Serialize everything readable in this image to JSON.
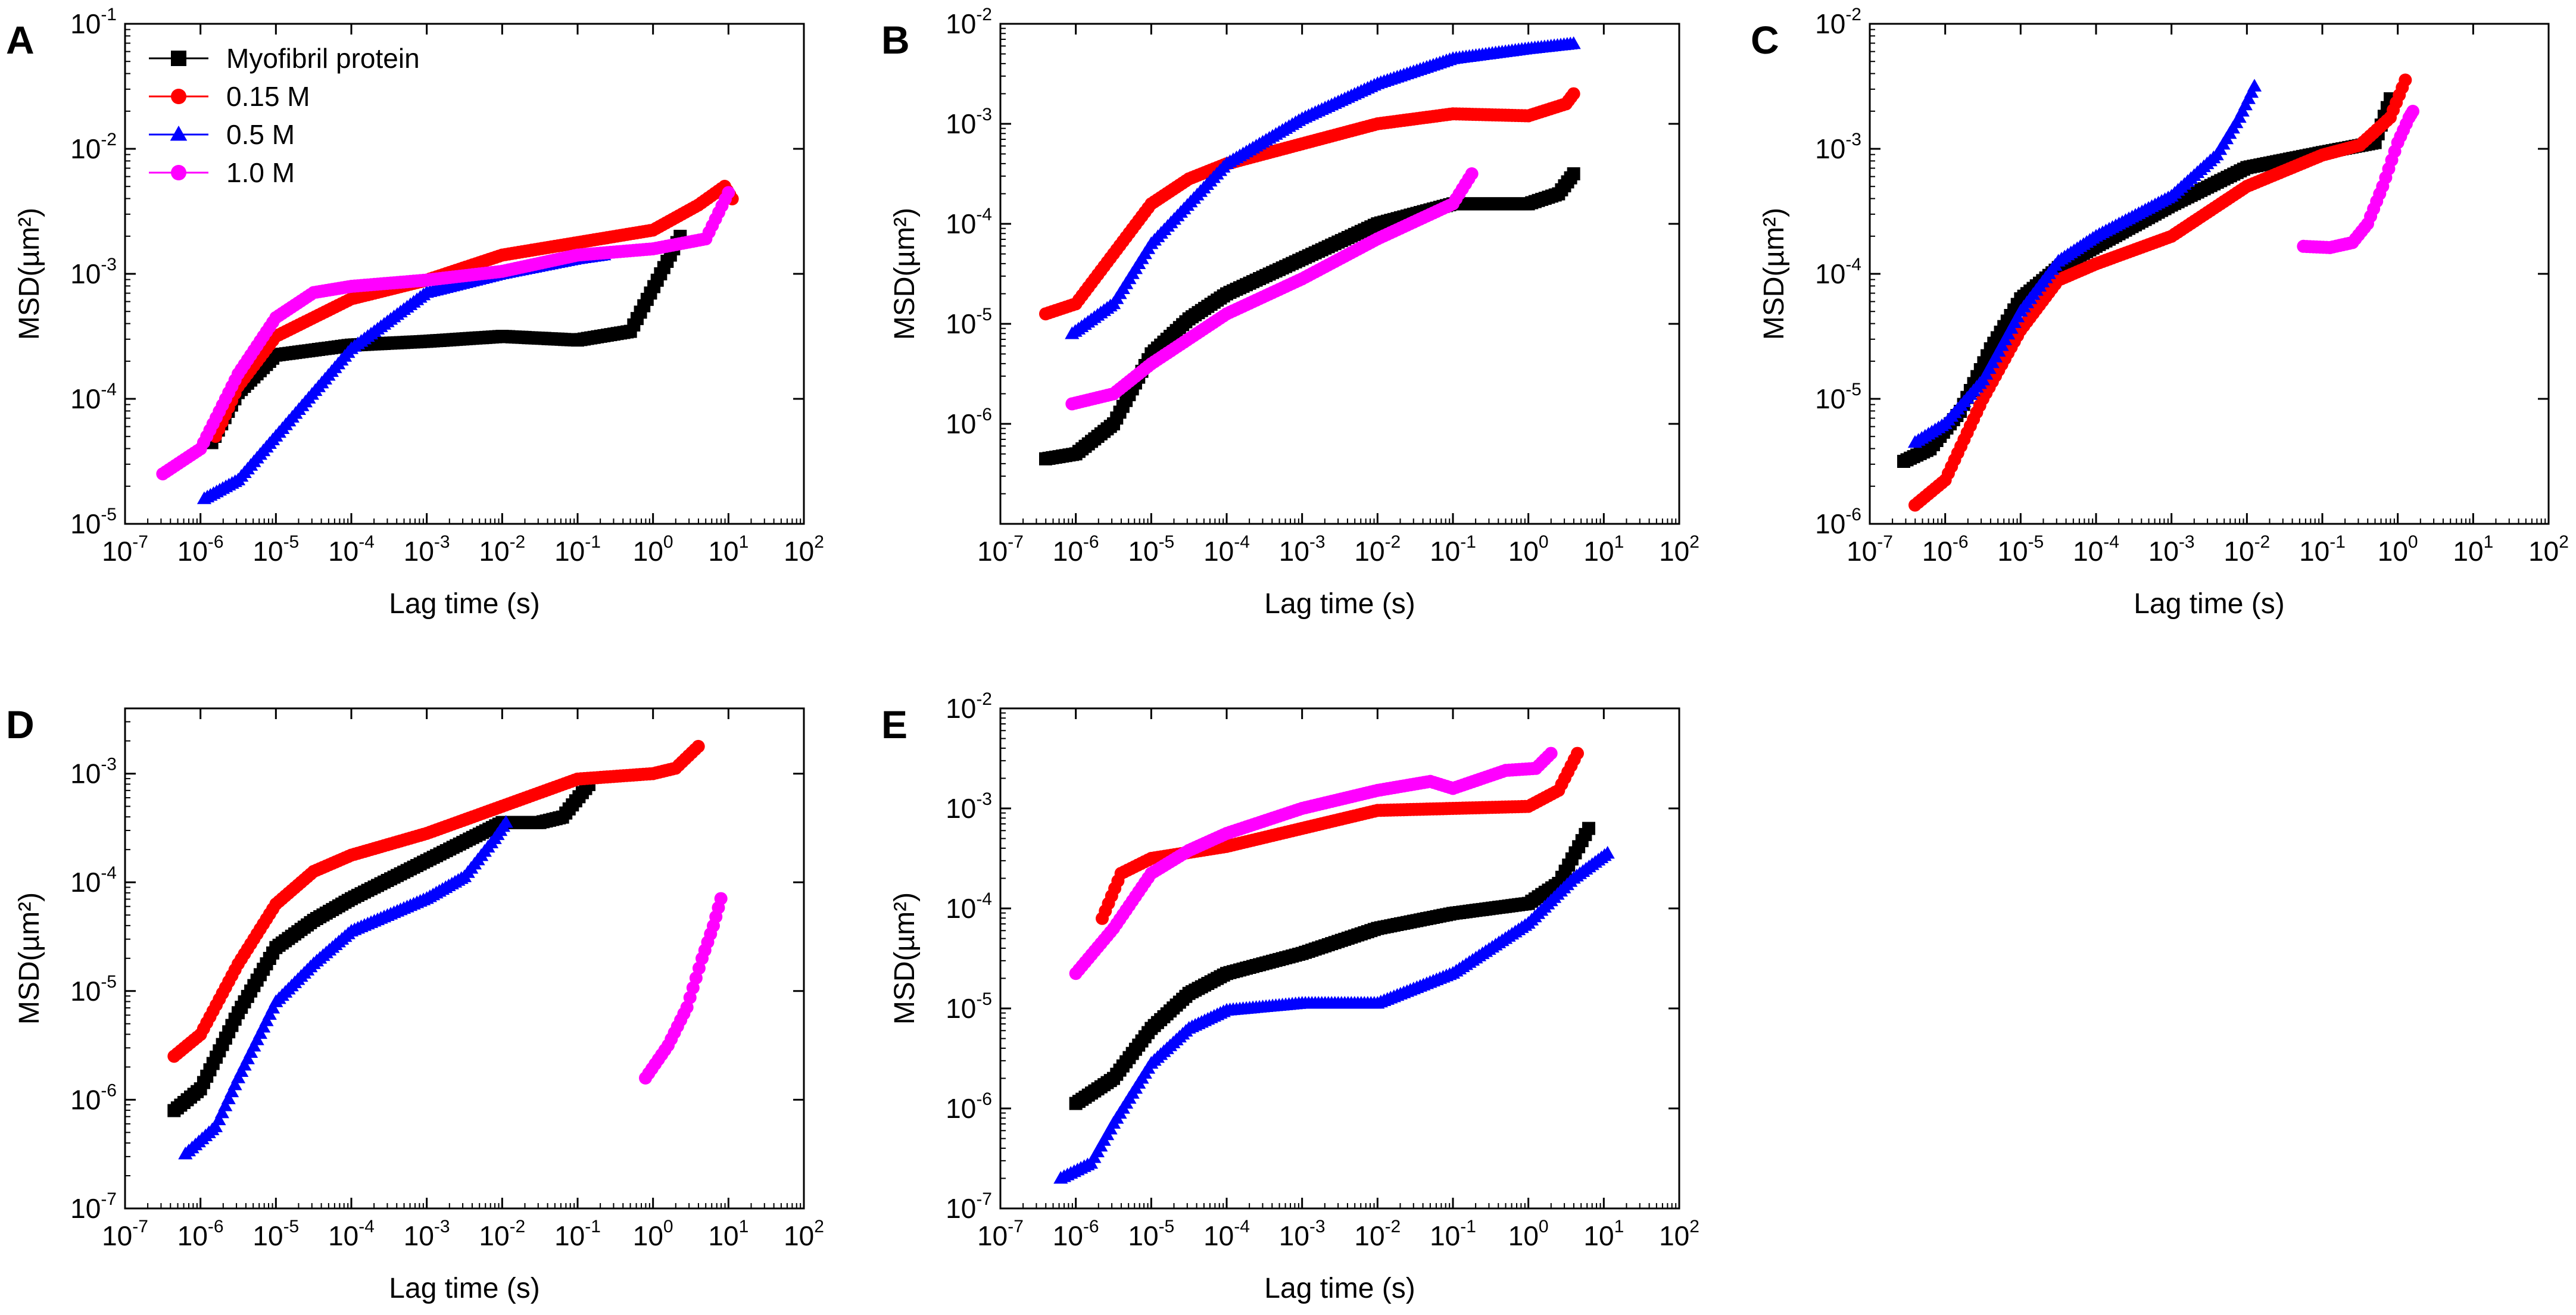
{
  "colors": {
    "myofibril": "#000000",
    "m015": "#ff0000",
    "m05": "#0000ff",
    "m10": "#ff00ff",
    "axis": "#000000",
    "background": "#ffffff"
  },
  "legend": {
    "entries": [
      {
        "label": "Myofibril protein",
        "color": "#000000",
        "marker": "square"
      },
      {
        "label": "0.15 M",
        "color": "#ff0000",
        "marker": "circle"
      },
      {
        "label": "0.5 M",
        "color": "#0000ff",
        "marker": "triangle"
      },
      {
        "label": "1.0 M",
        "color": "#ff00ff",
        "marker": "circle"
      }
    ]
  },
  "chart_data": [
    {
      "panel": "A",
      "type": "scatter",
      "xlabel": "Lag time (s)",
      "ylabel": "MSD(µm²)",
      "xscale": "log",
      "yscale": "log",
      "xlim_exp": [
        -7,
        2
      ],
      "ylim_exp": [
        -5,
        -1
      ],
      "yticks_exp": [
        -5,
        -4,
        -3,
        -2,
        -1
      ],
      "legend_position": "top-left",
      "series": [
        {
          "name": "Myofibril protein",
          "color": "#000000",
          "marker": "square",
          "log_points": [
            [
              -5.85,
              -4.35
            ],
            [
              -5.5,
              -3.95
            ],
            [
              -5.0,
              -3.65
            ],
            [
              -4.0,
              -3.57
            ],
            [
              -3.0,
              -3.54
            ],
            [
              -2.0,
              -3.5
            ],
            [
              -1.0,
              -3.53
            ],
            [
              -0.3,
              -3.46
            ],
            [
              0.1,
              -3.0
            ],
            [
              0.36,
              -2.7
            ]
          ]
        },
        {
          "name": "0.15 M",
          "color": "#ff0000",
          "marker": "circle",
          "log_points": [
            [
              -5.8,
              -4.3
            ],
            [
              -5.5,
              -3.9
            ],
            [
              -5.0,
              -3.5
            ],
            [
              -4.0,
              -3.2
            ],
            [
              -3.0,
              -3.05
            ],
            [
              -2.0,
              -2.85
            ],
            [
              -1.0,
              -2.75
            ],
            [
              0.0,
              -2.65
            ],
            [
              0.6,
              -2.45
            ],
            [
              0.95,
              -2.3
            ],
            [
              1.05,
              -2.4
            ]
          ]
        },
        {
          "name": "0.5 M",
          "color": "#0000ff",
          "marker": "triangle",
          "log_points": [
            [
              -5.95,
              -4.8
            ],
            [
              -5.5,
              -4.65
            ],
            [
              -5.0,
              -4.3
            ],
            [
              -4.0,
              -3.6
            ],
            [
              -3.0,
              -3.15
            ],
            [
              -2.0,
              -3.0
            ],
            [
              -1.0,
              -2.88
            ],
            [
              -0.65,
              -2.85
            ]
          ]
        },
        {
          "name": "1.0 M",
          "color": "#ff00ff",
          "marker": "circle",
          "log_points": [
            [
              -6.5,
              -4.6
            ],
            [
              -6.0,
              -4.4
            ],
            [
              -5.5,
              -3.8
            ],
            [
              -5.0,
              -3.35
            ],
            [
              -4.5,
              -3.15
            ],
            [
              -4.0,
              -3.1
            ],
            [
              -3.0,
              -3.05
            ],
            [
              -2.0,
              -2.98
            ],
            [
              -1.0,
              -2.85
            ],
            [
              0.0,
              -2.8
            ],
            [
              0.7,
              -2.72
            ],
            [
              1.0,
              -2.35
            ]
          ]
        }
      ]
    },
    {
      "panel": "B",
      "type": "scatter",
      "xlabel": "Lag time (s)",
      "ylabel": "MSD(µm²)",
      "xscale": "log",
      "yscale": "log",
      "xlim_exp": [
        -7,
        2
      ],
      "ylim_exp": [
        -7,
        -2
      ],
      "yticks_exp": [
        -6,
        -5,
        -4,
        -3,
        -2
      ],
      "series": [
        {
          "name": "Myofibril protein",
          "color": "#000000",
          "marker": "square",
          "log_points": [
            [
              -6.4,
              -6.35
            ],
            [
              -6.0,
              -6.3
            ],
            [
              -5.5,
              -6.0
            ],
            [
              -5.0,
              -5.3
            ],
            [
              -4.5,
              -4.95
            ],
            [
              -4.0,
              -4.7
            ],
            [
              -3.0,
              -4.35
            ],
            [
              -2.0,
              -4.0
            ],
            [
              -1.0,
              -3.8
            ],
            [
              0.0,
              -3.8
            ],
            [
              0.4,
              -3.7
            ],
            [
              0.6,
              -3.5
            ]
          ]
        },
        {
          "name": "0.15 M",
          "color": "#ff0000",
          "marker": "circle",
          "log_points": [
            [
              -6.4,
              -4.9
            ],
            [
              -6.0,
              -4.8
            ],
            [
              -5.5,
              -4.3
            ],
            [
              -5.0,
              -3.8
            ],
            [
              -4.5,
              -3.55
            ],
            [
              -4.0,
              -3.4
            ],
            [
              -3.0,
              -3.2
            ],
            [
              -2.0,
              -3.0
            ],
            [
              -1.0,
              -2.9
            ],
            [
              0.0,
              -2.92
            ],
            [
              0.5,
              -2.8
            ],
            [
              0.6,
              -2.7
            ]
          ]
        },
        {
          "name": "0.5 M",
          "color": "#0000ff",
          "marker": "triangle",
          "log_points": [
            [
              -6.05,
              -5.1
            ],
            [
              -5.5,
              -4.8
            ],
            [
              -5.0,
              -4.2
            ],
            [
              -4.0,
              -3.4
            ],
            [
              -3.0,
              -2.95
            ],
            [
              -2.0,
              -2.6
            ],
            [
              -1.0,
              -2.35
            ],
            [
              0.0,
              -2.25
            ],
            [
              0.6,
              -2.2
            ]
          ]
        },
        {
          "name": "1.0 M",
          "color": "#ff00ff",
          "marker": "circle",
          "log_points": [
            [
              -6.05,
              -5.8
            ],
            [
              -5.5,
              -5.7
            ],
            [
              -5.0,
              -5.4
            ],
            [
              -4.0,
              -4.9
            ],
            [
              -3.0,
              -4.55
            ],
            [
              -2.0,
              -4.15
            ],
            [
              -1.0,
              -3.8
            ],
            [
              -0.75,
              -3.5
            ]
          ]
        }
      ]
    },
    {
      "panel": "C",
      "type": "scatter",
      "xlabel": "Lag time (s)",
      "ylabel": "MSD(µm²)",
      "xscale": "log",
      "yscale": "log",
      "xlim_exp": [
        -7,
        2
      ],
      "ylim_exp": [
        -6,
        -2
      ],
      "yticks_exp": [
        -6,
        -5,
        -4,
        -3,
        -2
      ],
      "series": [
        {
          "name": "Myofibril protein",
          "color": "#000000",
          "marker": "square",
          "log_points": [
            [
              -6.55,
              -5.5
            ],
            [
              -6.2,
              -5.4
            ],
            [
              -5.8,
              -5.1
            ],
            [
              -5.4,
              -4.6
            ],
            [
              -5.0,
              -4.2
            ],
            [
              -4.5,
              -3.95
            ],
            [
              -4.0,
              -3.78
            ],
            [
              -3.0,
              -3.45
            ],
            [
              -2.0,
              -3.15
            ],
            [
              -1.0,
              -3.03
            ],
            [
              -0.3,
              -2.95
            ],
            [
              -0.1,
              -2.6
            ]
          ]
        },
        {
          "name": "0.15 M",
          "color": "#ff0000",
          "marker": "circle",
          "log_points": [
            [
              -6.4,
              -5.85
            ],
            [
              -6.0,
              -5.65
            ],
            [
              -5.5,
              -5.0
            ],
            [
              -5.0,
              -4.45
            ],
            [
              -4.5,
              -4.05
            ],
            [
              -4.0,
              -3.92
            ],
            [
              -3.0,
              -3.7
            ],
            [
              -2.0,
              -3.3
            ],
            [
              -1.0,
              -3.05
            ],
            [
              -0.5,
              -2.97
            ],
            [
              -0.1,
              -2.75
            ],
            [
              0.1,
              -2.45
            ]
          ]
        },
        {
          "name": "0.5 M",
          "color": "#0000ff",
          "marker": "triangle",
          "log_points": [
            [
              -6.4,
              -5.35
            ],
            [
              -6.0,
              -5.2
            ],
            [
              -5.5,
              -4.85
            ],
            [
              -5.0,
              -4.3
            ],
            [
              -4.5,
              -3.9
            ],
            [
              -4.0,
              -3.7
            ],
            [
              -3.0,
              -3.38
            ],
            [
              -2.4,
              -3.05
            ],
            [
              -2.1,
              -2.75
            ],
            [
              -1.9,
              -2.5
            ]
          ]
        },
        {
          "name": "1.0 M",
          "color": "#ff00ff",
          "marker": "circle",
          "log_points": [
            [
              -1.25,
              -3.78
            ],
            [
              -0.9,
              -3.79
            ],
            [
              -0.6,
              -3.75
            ],
            [
              -0.4,
              -3.6
            ],
            [
              -0.2,
              -3.3
            ],
            [
              0.0,
              -2.95
            ],
            [
              0.15,
              -2.75
            ],
            [
              0.2,
              -2.7
            ]
          ]
        }
      ]
    },
    {
      "panel": "D",
      "type": "scatter",
      "xlabel": "Lag time (s)",
      "ylabel": "MSD(µm²)",
      "xscale": "log",
      "yscale": "log",
      "xlim_exp": [
        -7,
        2
      ],
      "ylim_exp": [
        -7,
        -2.4
      ],
      "yticks_exp": [
        -7,
        -6,
        -5,
        -4,
        -3
      ],
      "series": [
        {
          "name": "Myofibril protein",
          "color": "#000000",
          "marker": "square",
          "log_points": [
            [
              -6.35,
              -6.1
            ],
            [
              -6.0,
              -5.9
            ],
            [
              -5.5,
              -5.2
            ],
            [
              -5.0,
              -4.6
            ],
            [
              -4.5,
              -4.35
            ],
            [
              -4.0,
              -4.15
            ],
            [
              -3.0,
              -3.8
            ],
            [
              -2.0,
              -3.45
            ],
            [
              -1.5,
              -3.45
            ],
            [
              -1.2,
              -3.4
            ],
            [
              -0.85,
              -3.1
            ]
          ]
        },
        {
          "name": "0.15 M",
          "color": "#ff0000",
          "marker": "circle",
          "log_points": [
            [
              -6.35,
              -5.6
            ],
            [
              -6.0,
              -5.4
            ],
            [
              -5.5,
              -4.75
            ],
            [
              -5.0,
              -4.2
            ],
            [
              -4.5,
              -3.9
            ],
            [
              -4.0,
              -3.75
            ],
            [
              -3.0,
              -3.55
            ],
            [
              -2.0,
              -3.3
            ],
            [
              -1.0,
              -3.05
            ],
            [
              0.0,
              -3.0
            ],
            [
              0.3,
              -2.95
            ],
            [
              0.6,
              -2.75
            ]
          ]
        },
        {
          "name": "0.5 M",
          "color": "#0000ff",
          "marker": "triangle",
          "log_points": [
            [
              -6.2,
              -6.5
            ],
            [
              -5.8,
              -6.25
            ],
            [
              -5.5,
              -5.8
            ],
            [
              -5.0,
              -5.1
            ],
            [
              -4.5,
              -4.75
            ],
            [
              -4.0,
              -4.45
            ],
            [
              -3.0,
              -4.15
            ],
            [
              -2.5,
              -3.95
            ],
            [
              -2.1,
              -3.6
            ],
            [
              -1.95,
              -3.45
            ]
          ]
        },
        {
          "name": "1.0 M",
          "color": "#ff00ff",
          "marker": "circle",
          "log_points": [
            [
              -0.1,
              -5.8
            ],
            [
              0.2,
              -5.5
            ],
            [
              0.45,
              -5.15
            ],
            [
              0.65,
              -4.7
            ],
            [
              0.8,
              -4.4
            ],
            [
              0.9,
              -4.15
            ]
          ]
        }
      ]
    },
    {
      "panel": "E",
      "type": "scatter",
      "xlabel": "Lag time (s)",
      "ylabel": "MSD(µm²)",
      "xscale": "log",
      "yscale": "log",
      "xlim_exp": [
        -7,
        2
      ],
      "ylim_exp": [
        -7,
        -2
      ],
      "yticks_exp": [
        -7,
        -6,
        -5,
        -4,
        -3,
        -2
      ],
      "series": [
        {
          "name": "Myofibril protein",
          "color": "#000000",
          "marker": "square",
          "log_points": [
            [
              -6.0,
              -5.95
            ],
            [
              -5.5,
              -5.7
            ],
            [
              -5.0,
              -5.2
            ],
            [
              -4.5,
              -4.85
            ],
            [
              -4.0,
              -4.65
            ],
            [
              -3.0,
              -4.45
            ],
            [
              -2.0,
              -4.2
            ],
            [
              -1.0,
              -4.05
            ],
            [
              0.0,
              -3.95
            ],
            [
              0.4,
              -3.75
            ],
            [
              0.8,
              -3.2
            ]
          ]
        },
        {
          "name": "0.15 M",
          "color": "#ff0000",
          "marker": "circle",
          "log_points": [
            [
              -5.65,
              -4.1
            ],
            [
              -5.4,
              -3.65
            ],
            [
              -5.0,
              -3.5
            ],
            [
              -4.0,
              -3.38
            ],
            [
              -3.0,
              -3.2
            ],
            [
              -2.0,
              -3.02
            ],
            [
              -1.0,
              -3.0
            ],
            [
              0.0,
              -2.98
            ],
            [
              0.4,
              -2.82
            ],
            [
              0.65,
              -2.45
            ]
          ]
        },
        {
          "name": "0.5 M",
          "color": "#0000ff",
          "marker": "triangle",
          "log_points": [
            [
              -6.2,
              -6.7
            ],
            [
              -5.8,
              -6.55
            ],
            [
              -5.5,
              -6.15
            ],
            [
              -5.0,
              -5.55
            ],
            [
              -4.5,
              -5.2
            ],
            [
              -4.0,
              -5.02
            ],
            [
              -3.0,
              -4.95
            ],
            [
              -2.0,
              -4.95
            ],
            [
              -1.0,
              -4.65
            ],
            [
              0.0,
              -4.15
            ],
            [
              0.6,
              -3.7
            ],
            [
              1.05,
              -3.45
            ]
          ]
        },
        {
          "name": "1.0 M",
          "color": "#ff00ff",
          "marker": "circle",
          "log_points": [
            [
              -6.0,
              -4.65
            ],
            [
              -5.5,
              -4.2
            ],
            [
              -5.0,
              -3.65
            ],
            [
              -4.5,
              -3.42
            ],
            [
              -4.0,
              -3.25
            ],
            [
              -3.0,
              -3.0
            ],
            [
              -2.0,
              -2.82
            ],
            [
              -1.3,
              -2.73
            ],
            [
              -1.0,
              -2.8
            ],
            [
              -0.3,
              -2.62
            ],
            [
              0.1,
              -2.6
            ],
            [
              0.3,
              -2.45
            ]
          ]
        }
      ]
    }
  ]
}
